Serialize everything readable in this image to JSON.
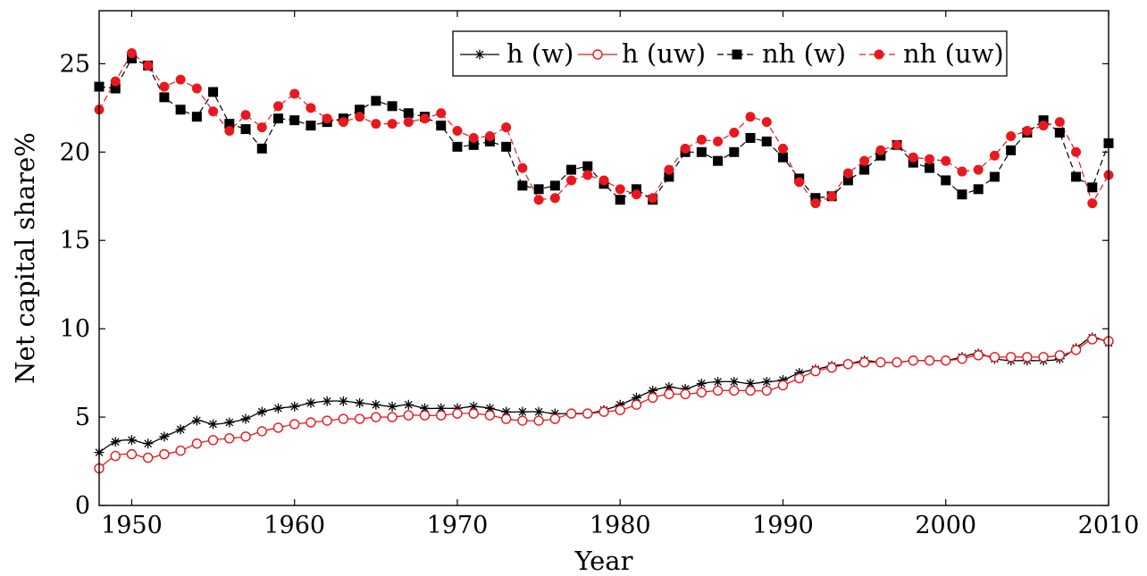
{
  "chart_data": {
    "type": "line",
    "title": "",
    "xlabel": "Year",
    "ylabel": "Net capital share%",
    "xlim": [
      1948,
      2010
    ],
    "ylim": [
      0,
      28
    ],
    "xticks": [
      1950,
      1960,
      1970,
      1980,
      1990,
      2000,
      2010
    ],
    "yticks": [
      0,
      5,
      10,
      15,
      20,
      25
    ],
    "grid": false,
    "legend_position": "top-right",
    "x": [
      1948,
      1949,
      1950,
      1951,
      1952,
      1953,
      1954,
      1955,
      1956,
      1957,
      1958,
      1959,
      1960,
      1961,
      1962,
      1963,
      1964,
      1965,
      1966,
      1967,
      1968,
      1969,
      1970,
      1971,
      1972,
      1973,
      1974,
      1975,
      1976,
      1977,
      1978,
      1979,
      1980,
      1981,
      1982,
      1983,
      1984,
      1985,
      1986,
      1987,
      1988,
      1989,
      1990,
      1991,
      1992,
      1993,
      1994,
      1995,
      1996,
      1997,
      1998,
      1999,
      2000,
      2001,
      2002,
      2003,
      2004,
      2005,
      2006,
      2007,
      2008,
      2009,
      2010
    ],
    "series": [
      {
        "name": "h (w)",
        "color": "#000000",
        "marker": "star",
        "dashed": false,
        "values": [
          3.0,
          3.6,
          3.7,
          3.5,
          3.9,
          4.3,
          4.8,
          4.6,
          4.7,
          4.9,
          5.3,
          5.5,
          5.6,
          5.8,
          5.9,
          5.9,
          5.8,
          5.7,
          5.6,
          5.7,
          5.5,
          5.5,
          5.5,
          5.6,
          5.5,
          5.3,
          5.3,
          5.3,
          5.2,
          5.2,
          5.2,
          5.4,
          5.7,
          6.1,
          6.5,
          6.7,
          6.6,
          6.9,
          7.0,
          7.0,
          6.9,
          7.0,
          7.1,
          7.5,
          7.7,
          7.9,
          8.0,
          8.2,
          8.1,
          8.1,
          8.2,
          8.2,
          8.2,
          8.4,
          8.6,
          8.3,
          8.2,
          8.2,
          8.2,
          8.3,
          8.9,
          9.5,
          9.2
        ]
      },
      {
        "name": "h (uw)",
        "color": "#e8181d",
        "marker": "circle-open",
        "dashed": false,
        "values": [
          2.1,
          2.8,
          2.9,
          2.7,
          2.9,
          3.1,
          3.5,
          3.7,
          3.8,
          3.9,
          4.2,
          4.4,
          4.6,
          4.7,
          4.8,
          4.9,
          4.9,
          5.0,
          5.0,
          5.1,
          5.1,
          5.1,
          5.2,
          5.2,
          5.1,
          4.9,
          4.8,
          4.8,
          4.9,
          5.2,
          5.2,
          5.3,
          5.4,
          5.7,
          6.1,
          6.3,
          6.3,
          6.4,
          6.5,
          6.5,
          6.5,
          6.5,
          6.8,
          7.2,
          7.6,
          7.8,
          8.0,
          8.1,
          8.1,
          8.1,
          8.2,
          8.2,
          8.2,
          8.3,
          8.5,
          8.4,
          8.4,
          8.4,
          8.4,
          8.5,
          8.8,
          9.4,
          9.3
        ]
      },
      {
        "name": "nh (w)",
        "color": "#000000",
        "marker": "square",
        "dashed": true,
        "values": [
          23.7,
          23.6,
          25.3,
          24.9,
          23.1,
          22.4,
          22.0,
          23.4,
          21.6,
          21.3,
          20.2,
          21.9,
          21.8,
          21.5,
          21.7,
          21.9,
          22.4,
          22.9,
          22.6,
          22.2,
          22.0,
          21.5,
          20.3,
          20.4,
          20.6,
          20.3,
          18.1,
          17.9,
          18.1,
          19.0,
          19.2,
          18.2,
          17.3,
          17.9,
          17.3,
          18.6,
          20.0,
          20.0,
          19.5,
          20.0,
          20.8,
          20.6,
          19.7,
          18.5,
          17.4,
          17.5,
          18.4,
          19.0,
          19.8,
          20.4,
          19.4,
          19.1,
          18.4,
          17.6,
          17.9,
          18.6,
          20.1,
          21.1,
          21.8,
          21.1,
          18.6,
          18.0,
          20.5
        ]
      },
      {
        "name": "nh (uw)",
        "color": "#e8181d",
        "marker": "circle",
        "dashed": true,
        "values": [
          22.4,
          24.0,
          25.6,
          24.9,
          23.7,
          24.1,
          23.6,
          22.3,
          21.2,
          22.1,
          21.4,
          22.6,
          23.3,
          22.5,
          21.9,
          21.7,
          22.0,
          21.6,
          21.6,
          21.7,
          21.9,
          22.2,
          21.2,
          20.8,
          20.9,
          21.4,
          19.1,
          17.3,
          17.4,
          18.4,
          18.7,
          18.4,
          17.9,
          17.6,
          17.4,
          19.0,
          20.2,
          20.7,
          20.6,
          21.1,
          22.0,
          21.7,
          20.2,
          18.3,
          17.1,
          17.5,
          18.8,
          19.5,
          20.1,
          20.4,
          19.7,
          19.6,
          19.5,
          18.9,
          19.0,
          19.8,
          20.9,
          21.2,
          21.5,
          21.7,
          20.0,
          17.1,
          18.7
        ]
      }
    ]
  }
}
